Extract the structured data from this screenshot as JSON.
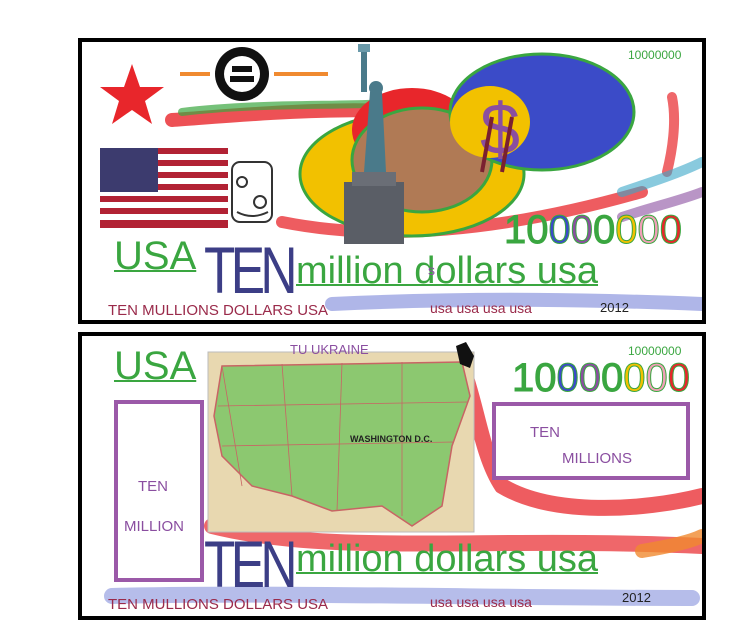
{
  "front": {
    "serial_small": "10000000",
    "serial_big": "10000000",
    "usa": "USA",
    "ten": "TEN",
    "million_line": "million dollars usa",
    "stray_letter": "s",
    "mullions": "TEN  MULLIONS DOLLARS  USA",
    "usa_repeat": "usa usa usa usa",
    "year": "2012"
  },
  "back": {
    "tu_ukraine": "TU UKRAINE",
    "serial_small": "10000000",
    "serial_big": "10000000",
    "usa": "USA",
    "left_box": {
      "line1": "TEN",
      "line2": "MILLION"
    },
    "right_box": {
      "line1": "TEN",
      "line2": "MILLIONS"
    },
    "map_label": "WASHINGTON D.C.",
    "ten": "TEN",
    "million_line": "million dollars usa",
    "mullions": "TEN  MULLIONS DOLLARS  USA",
    "usa_repeat": "usa usa usa usa",
    "year": "2012"
  },
  "colors": {
    "green": "#3aa640",
    "navy": "#3c3e86",
    "maroon": "#9a2a4a",
    "purple": "#9b59a8",
    "red": "#e8262b",
    "blue": "#3b4bc8",
    "yellow": "#f2c100"
  },
  "serial_digit_colors": [
    "#3aa640",
    "#3aa640",
    "#3b4bc8",
    "#8a4ea0",
    "#3aa640",
    "#f2c100",
    "#f0a0b8",
    "#e8262b"
  ]
}
